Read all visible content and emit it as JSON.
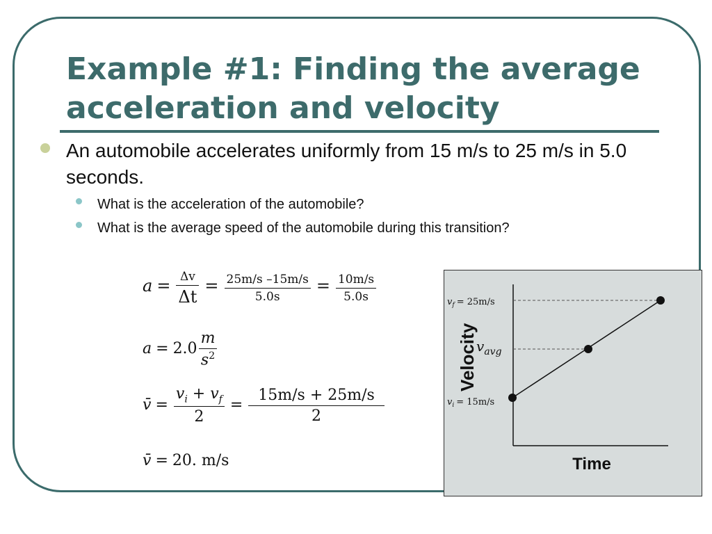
{
  "slide": {
    "title": "Example #1: Finding the average acceleration and velocity",
    "bullet": "An automobile accelerates uniformly from 15 m/s to 25 m/s in 5.0 seconds.",
    "sub_bullets": [
      "What is the acceleration of the automobile?",
      "What is the average speed of the automobile during this transition?"
    ]
  },
  "equations": {
    "eq1": {
      "lhs": "a",
      "num1": "Δv",
      "den1": "Δt",
      "num2": "25m/s –15m/s",
      "den2": "5.0s",
      "num3": "10m/s",
      "den3": "5.0s"
    },
    "eq2": {
      "lhs": "a",
      "value": "2.0",
      "unit_num": "m",
      "unit_den": "s",
      "unit_exp": "2"
    },
    "eq3": {
      "lhs": "v̄",
      "num1a": "v",
      "num1a_sub": "i",
      "num1b": "v",
      "num1b_sub": "f",
      "den1": "2",
      "num2": "15m/s + 25m/s",
      "den2": "2"
    },
    "eq4": {
      "lhs": "v̄",
      "rhs": "20. m/s"
    }
  },
  "chart_data": {
    "type": "line",
    "xlabel": "Time",
    "ylabel": "Velocity",
    "points": [
      {
        "label": "v_i",
        "y": 15
      },
      {
        "label": "v_avg",
        "y": 20
      },
      {
        "label": "v_f",
        "y": 25
      }
    ],
    "annotations": {
      "vf_label": "v",
      "vf_sub": "f",
      "vf_value": "= 25m/s",
      "vavg_label": "v",
      "vavg_sub": "avg",
      "vi_label": "v",
      "vi_sub": "i",
      "vi_value": "= 15m/s"
    },
    "colors": {
      "background": "#d7dcdc",
      "line": "#111111"
    }
  }
}
